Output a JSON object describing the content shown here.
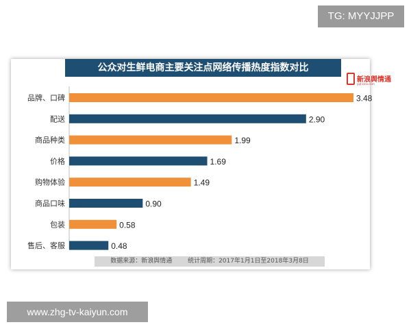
{
  "watermark_top": "TG: MYYJJPP",
  "watermark_bottom": "www.zhg-tv-kaiyun.com",
  "logo": {
    "text": "新浪舆情通",
    "subtext": "yqt.sina.com"
  },
  "footer": {
    "source": "数据来源：新浪舆情通",
    "period": "统计周期：2017年1月1日至2018年3月8日"
  },
  "colors": {
    "orange": "#f0913a",
    "blue": "#1e4f73",
    "title_bg": "#1e4f73"
  },
  "chart_data": {
    "type": "bar",
    "orientation": "horizontal",
    "title": "公众对生鲜电商主要关注点网络传播热度指数对比",
    "categories": [
      "品牌、口碑",
      "配送",
      "商品种类",
      "价格",
      "购物体验",
      "商品口味",
      "包装",
      "售后、客服"
    ],
    "values": [
      3.48,
      2.9,
      1.99,
      1.69,
      1.49,
      0.9,
      0.58,
      0.48
    ],
    "value_labels": [
      "3.48",
      "2.90",
      "1.99",
      "1.69",
      "1.49",
      "0.90",
      "0.58",
      "0.48"
    ],
    "bar_colors": [
      "#f0913a",
      "#1e4f73",
      "#f0913a",
      "#1e4f73",
      "#f0913a",
      "#1e4f73",
      "#f0913a",
      "#1e4f73"
    ],
    "xlim": [
      0,
      3.48
    ],
    "grid": false,
    "legend": "none"
  }
}
